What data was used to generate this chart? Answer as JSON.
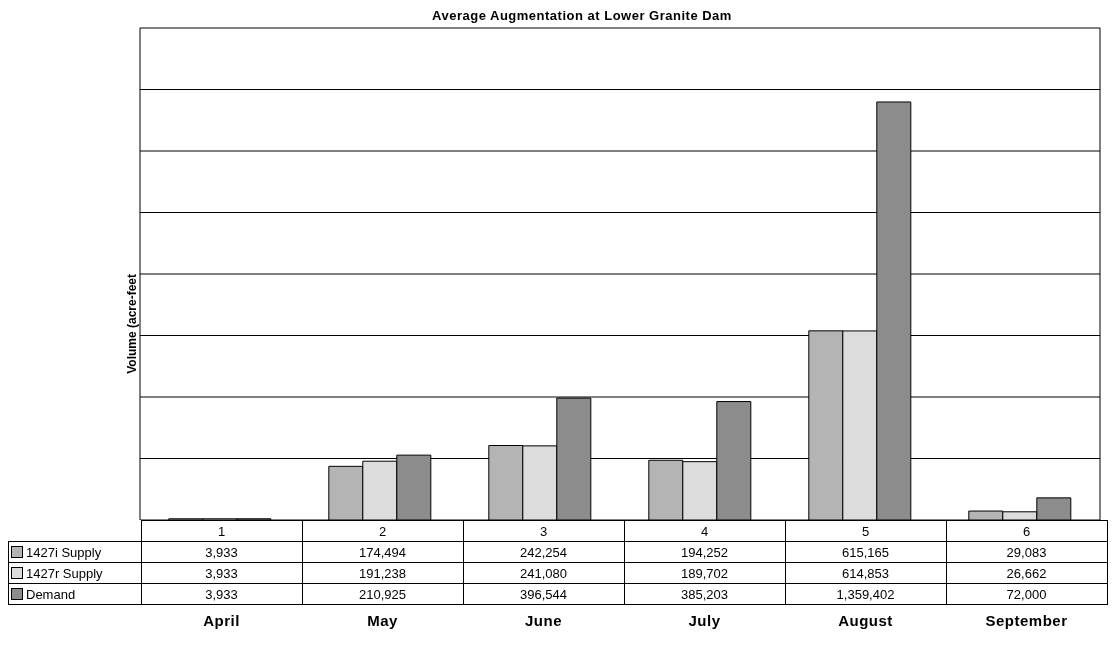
{
  "chart_data": {
    "type": "bar",
    "title": "Average Augmentation at Lower Granite Dam",
    "ylabel": "Volume (acre-feet",
    "categories": [
      "April",
      "May",
      "June",
      "July",
      "August",
      "September"
    ],
    "series": [
      {
        "name": "1427i Supply",
        "color": "#b4b4b4",
        "values": [
          3933,
          174494,
          242254,
          194252,
          615165,
          29083
        ],
        "value_labels": [
          "3,933",
          "174,494",
          "242,254",
          "194,252",
          "615,165",
          "29,083"
        ]
      },
      {
        "name": "1427r Supply",
        "color": "#dcdcdc",
        "values": [
          3933,
          191238,
          241080,
          189702,
          614853,
          26662
        ],
        "value_labels": [
          "3,933",
          "191,238",
          "241,080",
          "189,702",
          "614,853",
          "26,662"
        ]
      },
      {
        "name": "Demand",
        "color": "#8c8c8c",
        "values": [
          3933,
          210925,
          396544,
          385203,
          1359402,
          72000
        ],
        "value_labels": [
          "3,933",
          "210,925",
          "396,544",
          "385,203",
          "1,359,402",
          "72,000"
        ]
      }
    ],
    "grid": "y",
    "legend": "bottom",
    "annotations": [
      "1",
      "2",
      "3",
      "4",
      "5",
      "6"
    ]
  }
}
